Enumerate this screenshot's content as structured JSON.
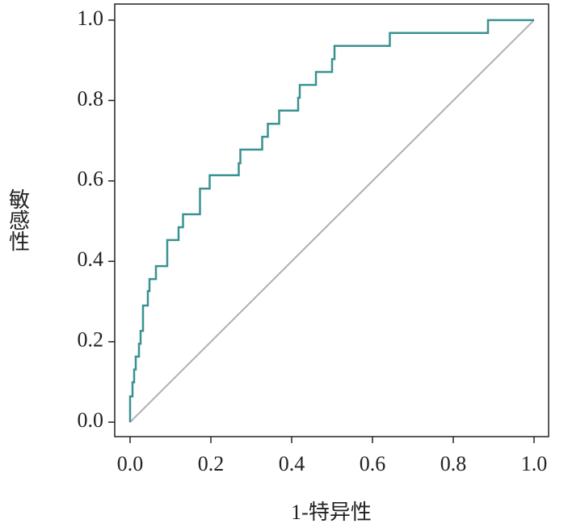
{
  "chart_data": {
    "type": "line",
    "xlabel": "1-特异性",
    "ylabel": "敏感性",
    "xlim": [
      -0.038,
      1.036
    ],
    "ylim": [
      -0.036,
      1.04
    ],
    "xticks": [
      {
        "value": 0,
        "label": "0.0"
      },
      {
        "value": 0.2,
        "label": "0.2"
      },
      {
        "value": 0.4,
        "label": "0.4"
      },
      {
        "value": 0.6,
        "label": "0.6"
      },
      {
        "value": 0.8,
        "label": "0.8"
      },
      {
        "value": 1,
        "label": "1.0"
      }
    ],
    "yticks": [
      {
        "value": 0,
        "label": "0.0"
      },
      {
        "value": 0.2,
        "label": "0.2"
      },
      {
        "value": 0.4,
        "label": "0.4"
      },
      {
        "value": 0.6,
        "label": "0.6"
      },
      {
        "value": 0.8,
        "label": "0.8"
      },
      {
        "value": 1,
        "label": "1.0"
      }
    ],
    "color": "#3a9191",
    "x": [
      0,
      0,
      0.006,
      0.006,
      0.01,
      0.01,
      0.014,
      0.014,
      0.022,
      0.022,
      0.026,
      0.026,
      0.032,
      0.032,
      0.044,
      0.044,
      0.048,
      0.048,
      0.064,
      0.064,
      0.092,
      0.092,
      0.12,
      0.12,
      0.131,
      0.131,
      0.173,
      0.173,
      0.197,
      0.197,
      0.269,
      0.269,
      0.273,
      0.273,
      0.327,
      0.327,
      0.341,
      0.341,
      0.369,
      0.369,
      0.416,
      0.416,
      0.42,
      0.42,
      0.46,
      0.46,
      0.5,
      0.5,
      0.506,
      0.506,
      0.643,
      0.643,
      0.886,
      0.886,
      1
    ],
    "values": [
      0,
      0.064,
      0.064,
      0.099,
      0.099,
      0.131,
      0.131,
      0.163,
      0.163,
      0.195,
      0.195,
      0.227,
      0.227,
      0.29,
      0.29,
      0.326,
      0.326,
      0.356,
      0.356,
      0.388,
      0.388,
      0.453,
      0.453,
      0.485,
      0.485,
      0.517,
      0.517,
      0.581,
      0.581,
      0.614,
      0.614,
      0.644,
      0.644,
      0.678,
      0.678,
      0.71,
      0.71,
      0.742,
      0.742,
      0.775,
      0.775,
      0.807,
      0.807,
      0.839,
      0.839,
      0.871,
      0.871,
      0.903,
      0.903,
      0.936,
      0.936,
      0.968,
      0.968,
      1,
      1
    ],
    "diagonal": {
      "x": [
        0,
        1
      ],
      "values": [
        0,
        1
      ],
      "color": "#b0b0b0"
    }
  }
}
